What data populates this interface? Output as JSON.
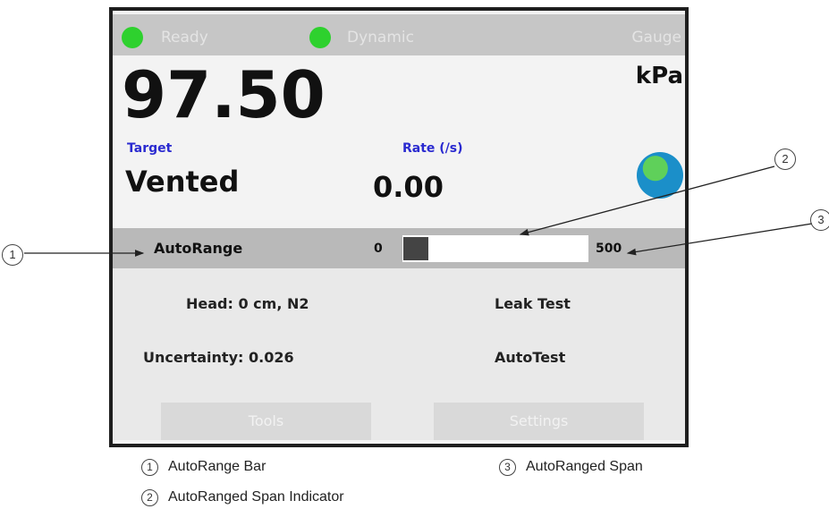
{
  "status_bar": [
    "Ready",
    "Dynamic",
    "Gauge"
  ],
  "reading": {
    "value": "97.50",
    "unit": "kPa"
  },
  "target": {
    "label": "Target",
    "value": "Vented"
  },
  "rate": {
    "label": "Rate (/s)",
    "value": "0.00"
  },
  "autorange": {
    "label": "AutoRange",
    "min": "0",
    "max": "500"
  },
  "rows": [
    [
      "Head: 0 cm, N2",
      "Leak Test"
    ],
    [
      "Uncertainty: 0.026",
      "AutoTest"
    ]
  ],
  "buttons": [
    "Tools",
    "Settings"
  ],
  "callouts": [
    {
      "number": "1",
      "label": "AutoRange Bar"
    },
    {
      "number": "2",
      "label": "AutoRanged Span Indicator"
    },
    {
      "number": "3",
      "label": "AutoRanged Span"
    }
  ]
}
